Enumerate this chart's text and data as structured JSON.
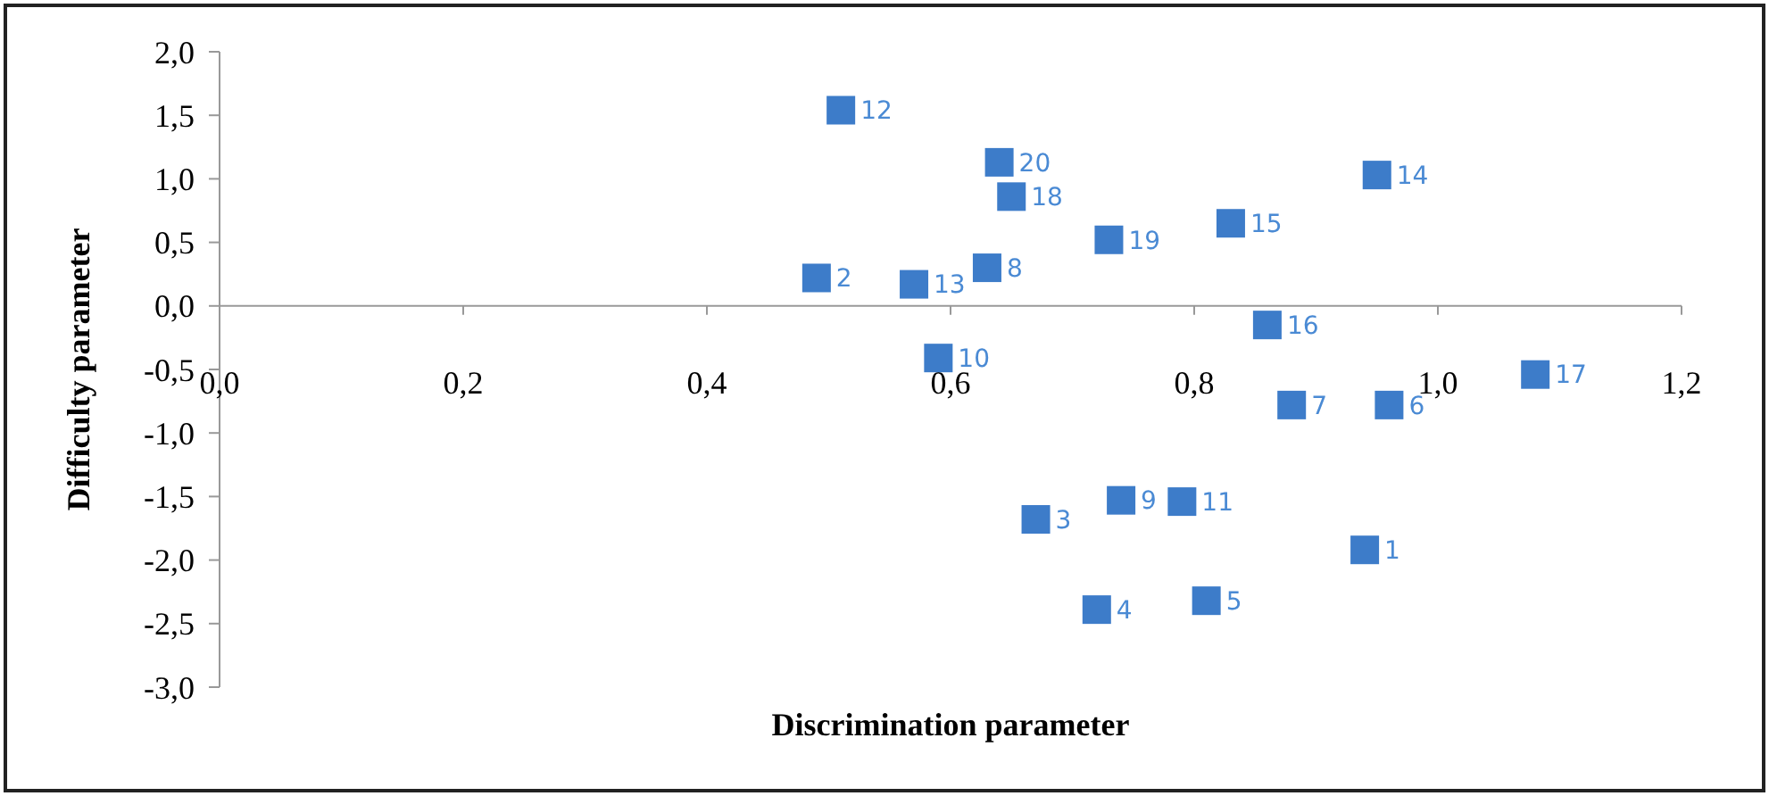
{
  "chart_data": {
    "type": "scatter",
    "xlabel": "Discrimination parameter",
    "ylabel": "Difficulty parameter",
    "xlim": [
      0,
      1.2
    ],
    "ylim": [
      -3,
      2
    ],
    "xticks": [
      {
        "value": 0,
        "label": "0,0"
      },
      {
        "value": 0.2,
        "label": "0,2"
      },
      {
        "value": 0.4,
        "label": "0,4"
      },
      {
        "value": 0.6,
        "label": "0,6"
      },
      {
        "value": 0.8,
        "label": "0,8"
      },
      {
        "value": 1.0,
        "label": "1,0"
      },
      {
        "value": 1.2,
        "label": "1,2"
      }
    ],
    "yticks": [
      {
        "value": 2,
        "label": "2,0"
      },
      {
        "value": 1.5,
        "label": "1,5"
      },
      {
        "value": 1,
        "label": "1,0"
      },
      {
        "value": 0.5,
        "label": "0,5"
      },
      {
        "value": 0,
        "label": "0,0"
      },
      {
        "value": -0.5,
        "label": "-0,5"
      },
      {
        "value": -1,
        "label": "-1,0"
      },
      {
        "value": -1.5,
        "label": "-1,5"
      },
      {
        "value": -2,
        "label": "-2,0"
      },
      {
        "value": -2.5,
        "label": "-2,5"
      },
      {
        "value": -3,
        "label": "-3,0"
      }
    ],
    "marker": "square",
    "series": [
      {
        "color": "#3d7cc9",
        "x": [
          0.94,
          0.49,
          0.67,
          0.72,
          0.81,
          0.96,
          0.88,
          0.63,
          0.74,
          0.59,
          0.79,
          0.51,
          0.57,
          0.95,
          0.83,
          0.86,
          1.08,
          0.65,
          0.73,
          0.64
        ],
        "values": [
          -1.92,
          0.22,
          -1.68,
          -2.39,
          -2.32,
          -0.78,
          -0.78,
          0.3,
          -1.53,
          -0.41,
          -1.54,
          1.54,
          0.17,
          1.03,
          0.65,
          -0.15,
          -0.54,
          0.86,
          0.52,
          1.13
        ]
      }
    ],
    "annotations": [
      {
        "text": "1",
        "x": 0.94,
        "y": -1.92
      },
      {
        "text": "2",
        "x": 0.49,
        "y": 0.22
      },
      {
        "text": "3",
        "x": 0.67,
        "y": -1.68
      },
      {
        "text": "4",
        "x": 0.72,
        "y": -2.39
      },
      {
        "text": "5",
        "x": 0.81,
        "y": -2.32
      },
      {
        "text": "6",
        "x": 0.96,
        "y": -0.78
      },
      {
        "text": "7",
        "x": 0.88,
        "y": -0.78
      },
      {
        "text": "8",
        "x": 0.63,
        "y": 0.3
      },
      {
        "text": "9",
        "x": 0.74,
        "y": -1.53
      },
      {
        "text": "10",
        "x": 0.59,
        "y": -0.41
      },
      {
        "text": "11",
        "x": 0.79,
        "y": -1.54
      },
      {
        "text": "12",
        "x": 0.51,
        "y": 1.54
      },
      {
        "text": "13",
        "x": 0.57,
        "y": 0.17
      },
      {
        "text": "14",
        "x": 0.95,
        "y": 1.03
      },
      {
        "text": "15",
        "x": 0.83,
        "y": 0.65
      },
      {
        "text": "16",
        "x": 0.86,
        "y": -0.15
      },
      {
        "text": "17",
        "x": 1.08,
        "y": -0.54
      },
      {
        "text": "18",
        "x": 0.65,
        "y": 0.86
      },
      {
        "text": "19",
        "x": 0.73,
        "y": 0.52
      },
      {
        "text": "20",
        "x": 0.64,
        "y": 1.13
      }
    ]
  }
}
